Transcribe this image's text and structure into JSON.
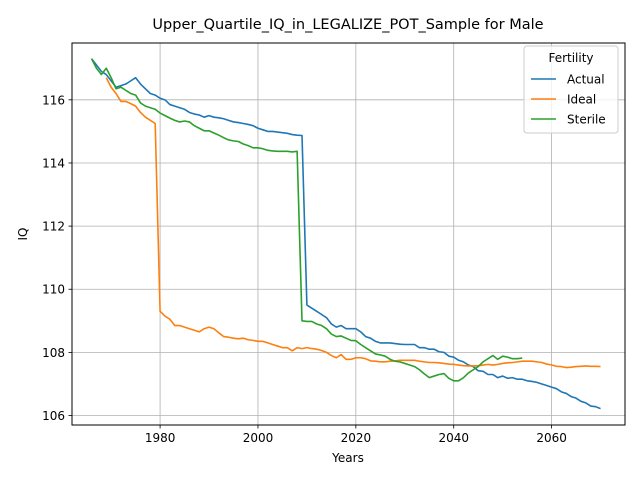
{
  "chart_data": {
    "type": "line",
    "title": "Upper_Quartile_IQ_in_LEGALIZE_POT_Sample for Male",
    "xlabel": "Years",
    "ylabel": "IQ",
    "xlim": [
      1962,
      2075
    ],
    "ylim": [
      105.7,
      117.8
    ],
    "xticks": [
      1980,
      2000,
      2020,
      2040,
      2060
    ],
    "yticks": [
      106,
      108,
      110,
      112,
      114,
      116
    ],
    "grid": true,
    "legend": {
      "title": "Fertility",
      "position": "top-right"
    },
    "series": [
      {
        "name": "Actual",
        "color": "#1f77b4",
        "points": [
          [
            1966,
            117.3
          ],
          [
            1968,
            116.9
          ],
          [
            1969,
            116.8
          ],
          [
            1970,
            116.6
          ],
          [
            1971,
            116.4
          ],
          [
            1972,
            116.45
          ],
          [
            1973,
            116.5
          ],
          [
            1974,
            116.6
          ],
          [
            1975,
            116.7
          ],
          [
            1976,
            116.5
          ],
          [
            1977,
            116.35
          ],
          [
            1978,
            116.2
          ],
          [
            1979,
            116.15
          ],
          [
            1980,
            116.05
          ],
          [
            1981,
            116.0
          ],
          [
            1982,
            115.85
          ],
          [
            1983,
            115.8
          ],
          [
            1984,
            115.75
          ],
          [
            1985,
            115.7
          ],
          [
            1986,
            115.6
          ],
          [
            1987,
            115.55
          ],
          [
            1988,
            115.52
          ],
          [
            1989,
            115.45
          ],
          [
            1990,
            115.5
          ],
          [
            1991,
            115.45
          ],
          [
            1992,
            115.43
          ],
          [
            1993,
            115.4
          ],
          [
            1994,
            115.35
          ],
          [
            1995,
            115.3
          ],
          [
            1996,
            115.28
          ],
          [
            1997,
            115.25
          ],
          [
            1998,
            115.22
          ],
          [
            1999,
            115.18
          ],
          [
            2000,
            115.1
          ],
          [
            2001,
            115.05
          ],
          [
            2002,
            115.0
          ],
          [
            2003,
            115.0
          ],
          [
            2004,
            114.98
          ],
          [
            2005,
            114.96
          ],
          [
            2006,
            114.94
          ],
          [
            2007,
            114.9
          ],
          [
            2008,
            114.88
          ],
          [
            2009,
            114.87
          ],
          [
            2010,
            109.5
          ],
          [
            2011,
            109.4
          ],
          [
            2012,
            109.3
          ],
          [
            2013,
            109.2
          ],
          [
            2014,
            109.1
          ],
          [
            2015,
            108.9
          ],
          [
            2016,
            108.8
          ],
          [
            2017,
            108.85
          ],
          [
            2018,
            108.75
          ],
          [
            2019,
            108.75
          ],
          [
            2020,
            108.75
          ],
          [
            2021,
            108.65
          ],
          [
            2022,
            108.5
          ],
          [
            2023,
            108.45
          ],
          [
            2024,
            108.35
          ],
          [
            2025,
            108.3
          ],
          [
            2026,
            108.3
          ],
          [
            2027,
            108.3
          ],
          [
            2028,
            108.28
          ],
          [
            2029,
            108.26
          ],
          [
            2030,
            108.25
          ],
          [
            2031,
            108.25
          ],
          [
            2032,
            108.25
          ],
          [
            2033,
            108.15
          ],
          [
            2034,
            108.15
          ],
          [
            2035,
            108.1
          ],
          [
            2036,
            108.1
          ],
          [
            2037,
            108.02
          ],
          [
            2038,
            108.0
          ],
          [
            2039,
            107.88
          ],
          [
            2040,
            107.85
          ],
          [
            2041,
            107.75
          ],
          [
            2042,
            107.7
          ],
          [
            2043,
            107.6
          ],
          [
            2044,
            107.55
          ],
          [
            2045,
            107.42
          ],
          [
            2046,
            107.4
          ],
          [
            2047,
            107.3
          ],
          [
            2048,
            107.3
          ],
          [
            2049,
            107.2
          ],
          [
            2050,
            107.25
          ],
          [
            2051,
            107.18
          ],
          [
            2052,
            107.2
          ],
          [
            2053,
            107.15
          ],
          [
            2054,
            107.15
          ],
          [
            2055,
            107.1
          ],
          [
            2056,
            107.08
          ],
          [
            2057,
            107.05
          ],
          [
            2058,
            107.0
          ],
          [
            2059,
            106.95
          ],
          [
            2060,
            106.9
          ],
          [
            2061,
            106.85
          ],
          [
            2062,
            106.75
          ],
          [
            2063,
            106.7
          ],
          [
            2064,
            106.6
          ],
          [
            2065,
            106.55
          ],
          [
            2066,
            106.45
          ],
          [
            2067,
            106.4
          ],
          [
            2068,
            106.3
          ],
          [
            2069,
            106.28
          ],
          [
            2070,
            106.22
          ]
        ]
      },
      {
        "name": "Ideal",
        "color": "#ff7f0e",
        "points": [
          [
            1969,
            116.7
          ],
          [
            1970,
            116.4
          ],
          [
            1971,
            116.2
          ],
          [
            1972,
            115.95
          ],
          [
            1973,
            115.95
          ],
          [
            1974,
            115.88
          ],
          [
            1975,
            115.8
          ],
          [
            1976,
            115.6
          ],
          [
            1977,
            115.45
          ],
          [
            1978,
            115.35
          ],
          [
            1979,
            115.25
          ],
          [
            1980,
            109.3
          ],
          [
            1981,
            109.15
          ],
          [
            1982,
            109.05
          ],
          [
            1983,
            108.85
          ],
          [
            1984,
            108.85
          ],
          [
            1985,
            108.8
          ],
          [
            1986,
            108.75
          ],
          [
            1987,
            108.7
          ],
          [
            1988,
            108.65
          ],
          [
            1989,
            108.75
          ],
          [
            1990,
            108.8
          ],
          [
            1991,
            108.75
          ],
          [
            1992,
            108.62
          ],
          [
            1993,
            108.5
          ],
          [
            1994,
            108.48
          ],
          [
            1995,
            108.45
          ],
          [
            1996,
            108.43
          ],
          [
            1997,
            108.45
          ],
          [
            1998,
            108.4
          ],
          [
            1999,
            108.38
          ],
          [
            2000,
            108.35
          ],
          [
            2001,
            108.35
          ],
          [
            2002,
            108.3
          ],
          [
            2003,
            108.25
          ],
          [
            2004,
            108.2
          ],
          [
            2005,
            108.15
          ],
          [
            2006,
            108.15
          ],
          [
            2007,
            108.05
          ],
          [
            2008,
            108.15
          ],
          [
            2009,
            108.12
          ],
          [
            2010,
            108.15
          ],
          [
            2011,
            108.12
          ],
          [
            2012,
            108.1
          ],
          [
            2013,
            108.06
          ],
          [
            2014,
            108.0
          ],
          [
            2015,
            107.9
          ],
          [
            2016,
            107.83
          ],
          [
            2017,
            107.93
          ],
          [
            2018,
            107.78
          ],
          [
            2019,
            107.78
          ],
          [
            2020,
            107.83
          ],
          [
            2021,
            107.83
          ],
          [
            2022,
            107.8
          ],
          [
            2023,
            107.73
          ],
          [
            2024,
            107.72
          ],
          [
            2025,
            107.7
          ],
          [
            2026,
            107.7
          ],
          [
            2027,
            107.72
          ],
          [
            2028,
            107.73
          ],
          [
            2029,
            107.75
          ],
          [
            2030,
            107.75
          ],
          [
            2031,
            107.75
          ],
          [
            2032,
            107.75
          ],
          [
            2033,
            107.72
          ],
          [
            2034,
            107.7
          ],
          [
            2035,
            107.68
          ],
          [
            2036,
            107.68
          ],
          [
            2037,
            107.67
          ],
          [
            2038,
            107.65
          ],
          [
            2039,
            107.63
          ],
          [
            2040,
            107.62
          ],
          [
            2041,
            107.6
          ],
          [
            2042,
            107.58
          ],
          [
            2043,
            107.57
          ],
          [
            2044,
            107.57
          ],
          [
            2045,
            107.58
          ],
          [
            2046,
            107.6
          ],
          [
            2047,
            107.62
          ],
          [
            2048,
            107.6
          ],
          [
            2049,
            107.62
          ],
          [
            2050,
            107.65
          ],
          [
            2051,
            107.67
          ],
          [
            2052,
            107.68
          ],
          [
            2053,
            107.7
          ],
          [
            2054,
            107.72
          ],
          [
            2055,
            107.72
          ],
          [
            2056,
            107.72
          ],
          [
            2057,
            107.7
          ],
          [
            2058,
            107.68
          ],
          [
            2059,
            107.63
          ],
          [
            2060,
            107.6
          ],
          [
            2061,
            107.56
          ],
          [
            2062,
            107.55
          ],
          [
            2063,
            107.52
          ],
          [
            2064,
            107.53
          ],
          [
            2065,
            107.55
          ],
          [
            2066,
            107.56
          ],
          [
            2067,
            107.57
          ],
          [
            2068,
            107.56
          ],
          [
            2069,
            107.56
          ],
          [
            2070,
            107.55
          ]
        ]
      },
      {
        "name": "Sterile",
        "color": "#2ca02c",
        "points": [
          [
            1966,
            117.3
          ],
          [
            1967,
            117.0
          ],
          [
            1968,
            116.8
          ],
          [
            1969,
            117.0
          ],
          [
            1970,
            116.7
          ],
          [
            1971,
            116.35
          ],
          [
            1972,
            116.4
          ],
          [
            1973,
            116.3
          ],
          [
            1974,
            116.2
          ],
          [
            1975,
            116.15
          ],
          [
            1976,
            115.9
          ],
          [
            1977,
            115.8
          ],
          [
            1978,
            115.75
          ],
          [
            1979,
            115.7
          ],
          [
            1980,
            115.58
          ],
          [
            1981,
            115.5
          ],
          [
            1982,
            115.42
          ],
          [
            1983,
            115.35
          ],
          [
            1984,
            115.3
          ],
          [
            1985,
            115.33
          ],
          [
            1986,
            115.3
          ],
          [
            1987,
            115.18
          ],
          [
            1988,
            115.1
          ],
          [
            1989,
            115.02
          ],
          [
            1990,
            115.02
          ],
          [
            1991,
            114.95
          ],
          [
            1992,
            114.88
          ],
          [
            1993,
            114.8
          ],
          [
            1994,
            114.73
          ],
          [
            1995,
            114.7
          ],
          [
            1996,
            114.68
          ],
          [
            1997,
            114.6
          ],
          [
            1998,
            114.55
          ],
          [
            1999,
            114.48
          ],
          [
            2000,
            114.48
          ],
          [
            2001,
            114.45
          ],
          [
            2002,
            114.4
          ],
          [
            2003,
            114.38
          ],
          [
            2004,
            114.37
          ],
          [
            2005,
            114.37
          ],
          [
            2006,
            114.37
          ],
          [
            2007,
            114.35
          ],
          [
            2008,
            114.37
          ],
          [
            2009,
            109.0
          ],
          [
            2010,
            108.98
          ],
          [
            2011,
            108.98
          ],
          [
            2012,
            108.9
          ],
          [
            2013,
            108.85
          ],
          [
            2014,
            108.75
          ],
          [
            2015,
            108.58
          ],
          [
            2016,
            108.5
          ],
          [
            2017,
            108.52
          ],
          [
            2018,
            108.45
          ],
          [
            2019,
            108.38
          ],
          [
            2020,
            108.37
          ],
          [
            2021,
            108.25
          ],
          [
            2022,
            108.15
          ],
          [
            2023,
            108.05
          ],
          [
            2024,
            107.95
          ],
          [
            2025,
            107.92
          ],
          [
            2026,
            107.88
          ],
          [
            2027,
            107.78
          ],
          [
            2028,
            107.72
          ],
          [
            2029,
            107.7
          ],
          [
            2030,
            107.65
          ],
          [
            2031,
            107.6
          ],
          [
            2032,
            107.55
          ],
          [
            2033,
            107.45
          ],
          [
            2034,
            107.32
          ],
          [
            2035,
            107.2
          ],
          [
            2036,
            107.25
          ],
          [
            2037,
            107.3
          ],
          [
            2038,
            107.33
          ],
          [
            2039,
            107.18
          ],
          [
            2040,
            107.1
          ],
          [
            2041,
            107.1
          ],
          [
            2042,
            107.2
          ],
          [
            2043,
            107.35
          ],
          [
            2044,
            107.45
          ],
          [
            2045,
            107.55
          ],
          [
            2046,
            107.7
          ],
          [
            2047,
            107.8
          ],
          [
            2048,
            107.9
          ],
          [
            2049,
            107.78
          ],
          [
            2050,
            107.88
          ],
          [
            2051,
            107.85
          ],
          [
            2052,
            107.8
          ],
          [
            2053,
            107.8
          ],
          [
            2054,
            107.82
          ]
        ]
      }
    ]
  }
}
